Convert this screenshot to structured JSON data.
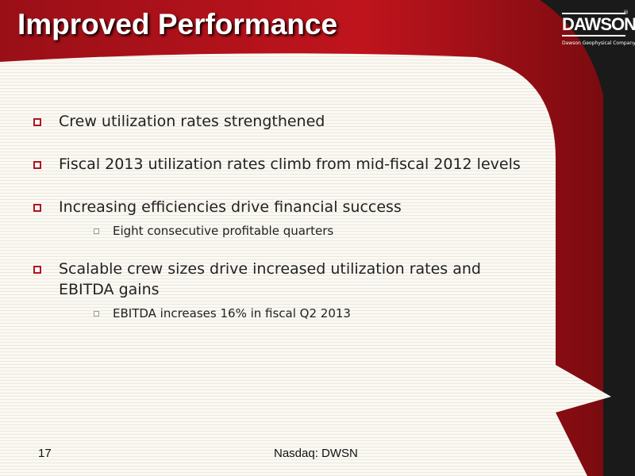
{
  "header": {
    "title": "Improved Performance",
    "logo": "DAWSON",
    "logo_sub": "Dawson Geophysical Company",
    "registered": "®"
  },
  "bullets": [
    {
      "text": "Crew utilization rates strengthened",
      "sub": []
    },
    {
      "text": "Fiscal 2013 utilization rates climb from mid-fiscal 2012 levels",
      "sub": []
    },
    {
      "text": "Increasing efficiencies drive financial success",
      "sub": [
        "Eight consecutive profitable quarters"
      ]
    },
    {
      "text": "Scalable crew sizes drive increased utilization rates and EBITDA gains",
      "sub": [
        "EBITDA increases 16% in fiscal Q2 2013"
      ]
    }
  ],
  "footer": {
    "page": "17",
    "ticker": "Nasdaq: DWSN"
  }
}
